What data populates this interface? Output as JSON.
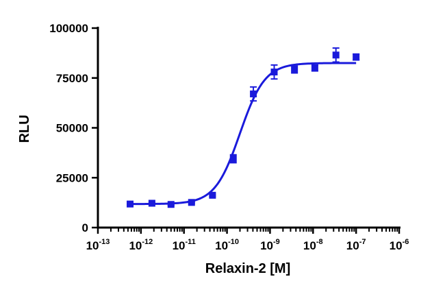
{
  "chart_data": {
    "type": "scatter",
    "xlabel": "Relaxin-2 [M]",
    "ylabel": "RLU",
    "x_scale": "log10",
    "xlim": [
      1e-13,
      1e-06
    ],
    "ylim": [
      0,
      100000
    ],
    "x_tick_labels": [
      {
        "base": "10",
        "exp": "-13"
      },
      {
        "base": "10",
        "exp": "-12"
      },
      {
        "base": "10",
        "exp": "-11"
      },
      {
        "base": "10",
        "exp": "-10"
      },
      {
        "base": "10",
        "exp": "-9"
      },
      {
        "base": "10",
        "exp": "-8"
      },
      {
        "base": "10",
        "exp": "-7"
      },
      {
        "base": "10",
        "exp": "-6"
      }
    ],
    "y_tick_labels": [
      "0",
      "25000",
      "50000",
      "75000",
      "100000"
    ],
    "y_ticks": [
      0,
      25000,
      50000,
      75000,
      100000
    ],
    "series": [
      {
        "color": "#1a1adb",
        "points": [
          {
            "x": 5.6e-13,
            "y": 11800,
            "err": 300
          },
          {
            "x": 1.8e-12,
            "y": 12200,
            "err": 300
          },
          {
            "x": 5e-12,
            "y": 11600,
            "err": 400
          },
          {
            "x": 1.5e-11,
            "y": 12600,
            "err": 400
          },
          {
            "x": 4.6e-11,
            "y": 16200,
            "err": 500
          },
          {
            "x": 1.4e-10,
            "y": 34500,
            "err": 2000
          },
          {
            "x": 4.1e-10,
            "y": 67000,
            "err": 3500
          },
          {
            "x": 1.25e-09,
            "y": 78000,
            "err": 3500
          },
          {
            "x": 3.7e-09,
            "y": 79500,
            "err": 2000
          },
          {
            "x": 1.1e-08,
            "y": 80000,
            "err": 1500
          },
          {
            "x": 3.4e-08,
            "y": 86500,
            "err": 3500
          },
          {
            "x": 1e-07,
            "y": 85500,
            "err": 1500
          }
        ],
        "fit": {
          "bottom": 11800,
          "top": 82500,
          "log_ec50": -9.7,
          "hill": 1.5
        }
      }
    ]
  }
}
